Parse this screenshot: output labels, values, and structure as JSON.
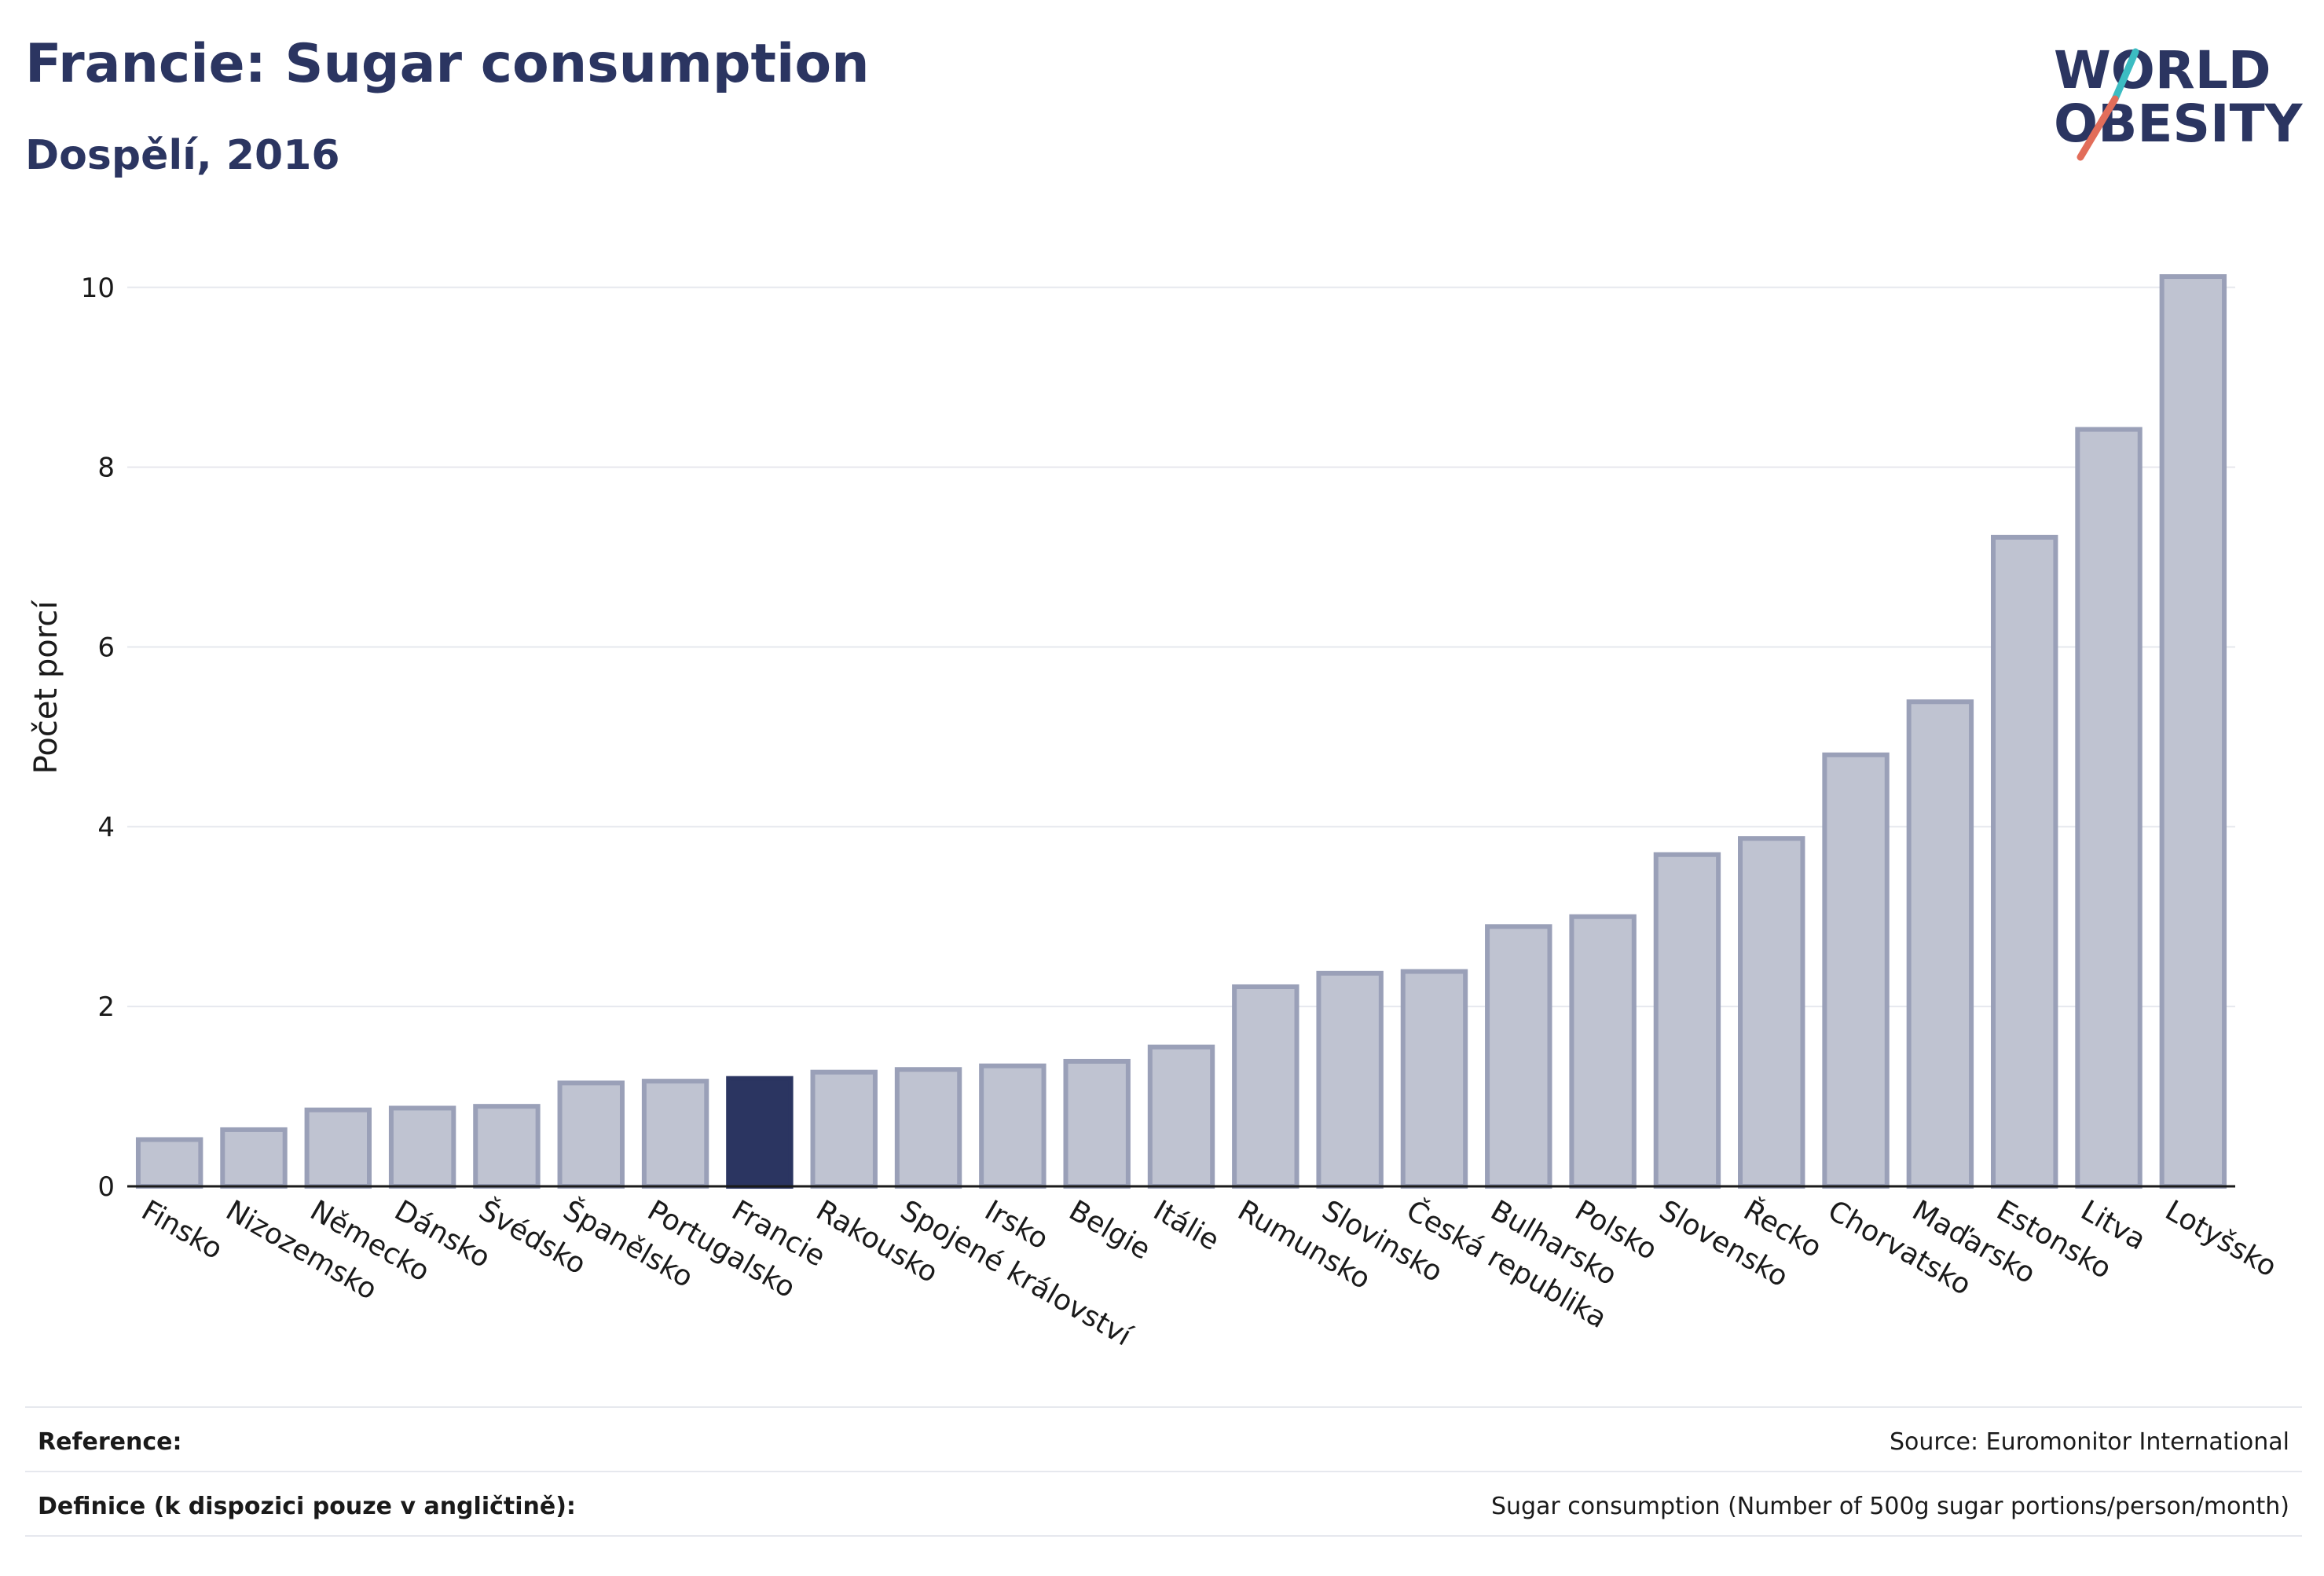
{
  "header": {
    "title": "Francie: Sugar consumption",
    "subtitle": "Dospělí, 2016"
  },
  "logo": {
    "line1": "WORLD",
    "line2": "OBESITY",
    "slash_top_color": "#3cbcc2",
    "slash_bottom_color": "#e26d5a"
  },
  "colors": {
    "bar": "#bfc3d1",
    "bar_stroke": "#9aa0b8",
    "highlight": "#2b3561",
    "grid": "#e6e8ee",
    "axis": "#1a1a1a"
  },
  "chart_data": {
    "type": "bar",
    "ylabel": "Počet porcí",
    "ylim": [
      0,
      10.4
    ],
    "yticks": [
      0,
      2,
      4,
      6,
      8,
      10
    ],
    "highlight": "Francie",
    "categories": [
      "Finsko",
      "Nizozemsko",
      "Německo",
      "Dánsko",
      "Švédsko",
      "Španělsko",
      "Portugalsko",
      "Francie",
      "Rakousko",
      "Spojené království",
      "Irsko",
      "Belgie",
      "Itálie",
      "Rumunsko",
      "Slovinsko",
      "Česká republika",
      "Bulharsko",
      "Polsko",
      "Slovensko",
      "Řecko",
      "Chorvatsko",
      "Maďarsko",
      "Estonsko",
      "Litva",
      "Lotyšsko"
    ],
    "values": [
      0.52,
      0.63,
      0.85,
      0.87,
      0.89,
      1.15,
      1.17,
      1.2,
      1.27,
      1.3,
      1.34,
      1.39,
      1.55,
      2.22,
      2.37,
      2.39,
      2.89,
      3.0,
      3.69,
      3.87,
      4.8,
      5.39,
      7.22,
      8.42,
      10.12
    ]
  },
  "footer": {
    "reference_label": "Reference:",
    "reference_value": "Source: Euromonitor International",
    "definition_label": "Definice (k dispozici pouze v angličtině):",
    "definition_value": "Sugar consumption (Number of 500g sugar portions/person/month)"
  }
}
